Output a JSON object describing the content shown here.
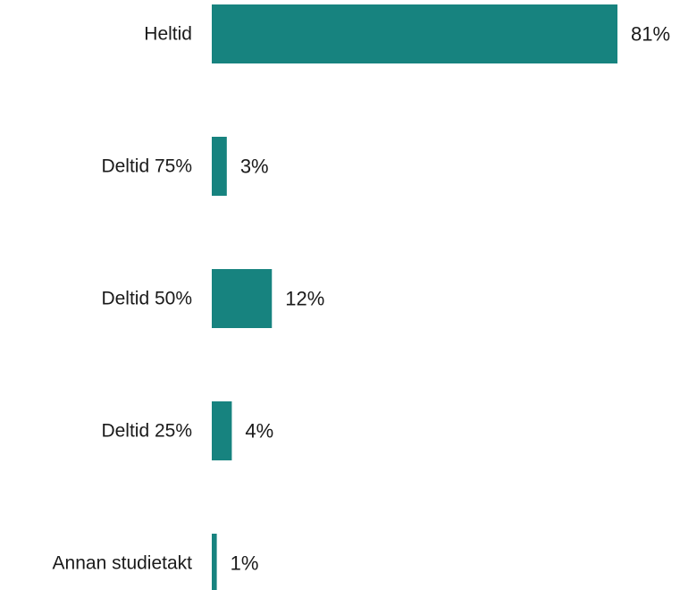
{
  "chart_data": {
    "type": "bar",
    "orientation": "horizontal",
    "categories": [
      "Heltid",
      "Deltid 75%",
      "Deltid 50%",
      "Deltid 25%",
      "Annan studietakt"
    ],
    "values": [
      81,
      3,
      12,
      4,
      1
    ],
    "value_labels": [
      "81%",
      "3%",
      "12%",
      "4%",
      "1%"
    ],
    "unit": "%",
    "xlim": [
      0,
      81
    ],
    "grid": false,
    "legend": "none",
    "bar_color": "#17837f"
  }
}
